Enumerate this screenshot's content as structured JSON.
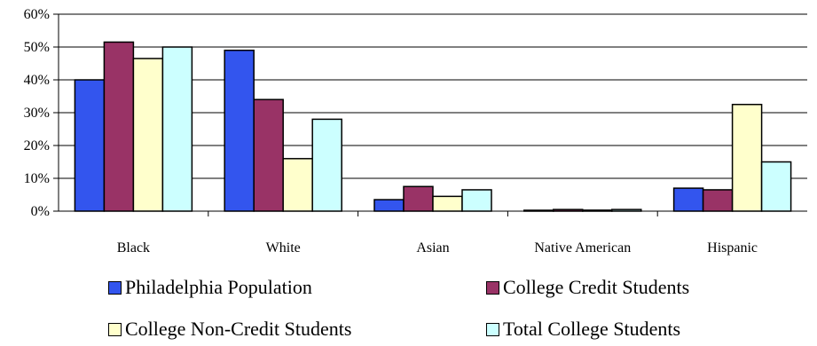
{
  "chart_data": {
    "type": "bar",
    "categories": [
      "Black",
      "White",
      "Asian",
      "Native American",
      "Hispanic"
    ],
    "series": [
      {
        "name": "Philadelphia Population",
        "values": [
          40,
          49,
          3.5,
          0.2,
          7
        ],
        "color": "#3355ee"
      },
      {
        "name": "College Credit Students",
        "values": [
          51.5,
          34,
          7.5,
          0.5,
          6.5
        ],
        "color": "#993366"
      },
      {
        "name": "College Non-Credit Students",
        "values": [
          46.5,
          16,
          4.5,
          0.3,
          32.5
        ],
        "color": "#ffffcc"
      },
      {
        "name": "Total College Students",
        "values": [
          50,
          28,
          6.5,
          0.5,
          15
        ],
        "color": "#ccffff"
      }
    ],
    "ylim": [
      0,
      60
    ],
    "yticks": [
      0,
      10,
      20,
      30,
      40,
      50,
      60
    ],
    "ytick_labels": [
      "0%",
      "10%",
      "20%",
      "30%",
      "40%",
      "50%",
      "60%"
    ],
    "grid": true,
    "legend_position": "bottom"
  }
}
